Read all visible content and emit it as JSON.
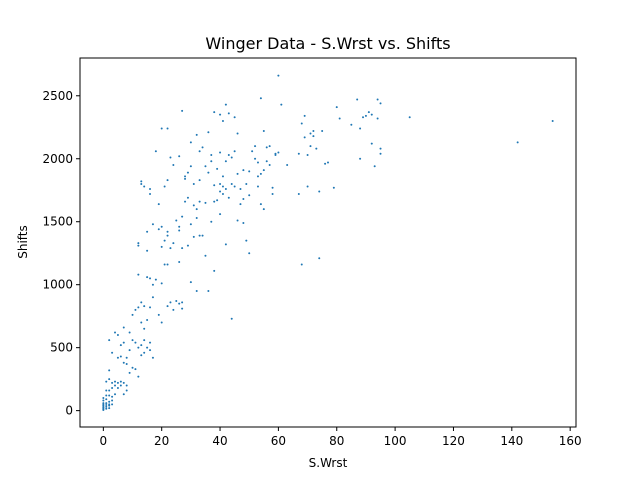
{
  "chart_data": {
    "type": "scatter",
    "title": "Winger Data - S.Wrst vs. Shifts",
    "xlabel": "S.Wrst",
    "ylabel": "Shifts",
    "xlim": [
      -8,
      162
    ],
    "ylim": [
      -130,
      2800
    ],
    "xticks": [
      0,
      20,
      40,
      60,
      80,
      100,
      120,
      140,
      160
    ],
    "yticks": [
      0,
      500,
      1000,
      1500,
      2000,
      2500
    ],
    "grid": false,
    "marker_color": "#1f77b4",
    "points": [
      [
        0,
        10
      ],
      [
        0,
        20
      ],
      [
        0,
        25
      ],
      [
        0,
        30
      ],
      [
        0,
        40
      ],
      [
        0,
        50
      ],
      [
        0,
        60
      ],
      [
        0,
        80
      ],
      [
        0,
        100
      ],
      [
        0,
        5
      ],
      [
        1,
        15
      ],
      [
        1,
        30
      ],
      [
        1,
        45
      ],
      [
        1,
        60
      ],
      [
        1,
        90
      ],
      [
        1,
        120
      ],
      [
        1,
        160
      ],
      [
        1,
        230
      ],
      [
        2,
        20
      ],
      [
        2,
        40
      ],
      [
        2,
        50
      ],
      [
        2,
        70
      ],
      [
        2,
        120
      ],
      [
        2,
        160
      ],
      [
        2,
        250
      ],
      [
        2,
        320
      ],
      [
        2,
        560
      ],
      [
        3,
        50
      ],
      [
        3,
        80
      ],
      [
        3,
        110
      ],
      [
        3,
        180
      ],
      [
        3,
        220
      ],
      [
        3,
        460
      ],
      [
        4,
        130
      ],
      [
        4,
        200
      ],
      [
        4,
        230
      ],
      [
        4,
        620
      ],
      [
        5,
        180
      ],
      [
        5,
        220
      ],
      [
        5,
        420
      ],
      [
        5,
        600
      ],
      [
        6,
        200
      ],
      [
        6,
        230
      ],
      [
        6,
        430
      ],
      [
        6,
        520
      ],
      [
        7,
        130
      ],
      [
        7,
        220
      ],
      [
        7,
        380
      ],
      [
        7,
        540
      ],
      [
        7,
        660
      ],
      [
        8,
        160
      ],
      [
        8,
        200
      ],
      [
        8,
        370
      ],
      [
        8,
        420
      ],
      [
        9,
        300
      ],
      [
        9,
        480
      ],
      [
        9,
        620
      ],
      [
        10,
        340
      ],
      [
        10,
        560
      ],
      [
        10,
        760
      ],
      [
        11,
        330
      ],
      [
        11,
        540
      ],
      [
        11,
        800
      ],
      [
        12,
        270
      ],
      [
        12,
        500
      ],
      [
        12,
        820
      ],
      [
        12,
        1080
      ],
      [
        12,
        1310
      ],
      [
        12,
        1330
      ],
      [
        13,
        440
      ],
      [
        13,
        520
      ],
      [
        13,
        700
      ],
      [
        13,
        860
      ],
      [
        13,
        1800
      ],
      [
        13,
        1820
      ],
      [
        14,
        460
      ],
      [
        14,
        560
      ],
      [
        14,
        650
      ],
      [
        14,
        830
      ],
      [
        14,
        1780
      ],
      [
        15,
        500
      ],
      [
        15,
        720
      ],
      [
        15,
        1060
      ],
      [
        15,
        1270
      ],
      [
        15,
        1420
      ],
      [
        16,
        480
      ],
      [
        16,
        540
      ],
      [
        16,
        820
      ],
      [
        16,
        1050
      ],
      [
        16,
        1720
      ],
      [
        16,
        1760
      ],
      [
        17,
        420
      ],
      [
        17,
        900
      ],
      [
        17,
        1000
      ],
      [
        17,
        1480
      ],
      [
        18,
        1040
      ],
      [
        18,
        2060
      ],
      [
        19,
        760
      ],
      [
        19,
        1440
      ],
      [
        19,
        1640
      ],
      [
        20,
        700
      ],
      [
        20,
        1010
      ],
      [
        20,
        1300
      ],
      [
        20,
        1460
      ],
      [
        20,
        2240
      ],
      [
        21,
        1160
      ],
      [
        21,
        1350
      ],
      [
        21,
        1780
      ],
      [
        22,
        830
      ],
      [
        22,
        1160
      ],
      [
        22,
        1390
      ],
      [
        22,
        1420
      ],
      [
        22,
        1830
      ],
      [
        22,
        2240
      ],
      [
        23,
        860
      ],
      [
        23,
        1290
      ],
      [
        23,
        2010
      ],
      [
        24,
        800
      ],
      [
        24,
        1330
      ],
      [
        24,
        1950
      ],
      [
        25,
        870
      ],
      [
        25,
        1510
      ],
      [
        26,
        850
      ],
      [
        26,
        1180
      ],
      [
        26,
        1430
      ],
      [
        26,
        1460
      ],
      [
        26,
        2020
      ],
      [
        27,
        810
      ],
      [
        27,
        860
      ],
      [
        27,
        1290
      ],
      [
        27,
        1540
      ],
      [
        27,
        2380
      ],
      [
        28,
        1660
      ],
      [
        28,
        1840
      ],
      [
        28,
        1860
      ],
      [
        29,
        1310
      ],
      [
        29,
        1690
      ],
      [
        29,
        1890
      ],
      [
        30,
        1020
      ],
      [
        30,
        1480
      ],
      [
        30,
        1940
      ],
      [
        30,
        2130
      ],
      [
        31,
        1380
      ],
      [
        31,
        1630
      ],
      [
        31,
        1800
      ],
      [
        32,
        950
      ],
      [
        32,
        1530
      ],
      [
        32,
        1600
      ],
      [
        32,
        2190
      ],
      [
        33,
        1390
      ],
      [
        33,
        1660
      ],
      [
        33,
        1830
      ],
      [
        33,
        2060
      ],
      [
        34,
        1390
      ],
      [
        34,
        2090
      ],
      [
        35,
        1230
      ],
      [
        35,
        1650
      ],
      [
        35,
        1940
      ],
      [
        36,
        950
      ],
      [
        36,
        1890
      ],
      [
        36,
        2210
      ],
      [
        37,
        1500
      ],
      [
        37,
        1980
      ],
      [
        37,
        2030
      ],
      [
        38,
        1110
      ],
      [
        38,
        1660
      ],
      [
        38,
        1790
      ],
      [
        38,
        2370
      ],
      [
        39,
        1670
      ],
      [
        39,
        1920
      ],
      [
        40,
        1560
      ],
      [
        40,
        1740
      ],
      [
        40,
        1800
      ],
      [
        40,
        2050
      ],
      [
        40,
        2350
      ],
      [
        41,
        1720
      ],
      [
        41,
        1780
      ],
      [
        41,
        1860
      ],
      [
        41,
        2300
      ],
      [
        42,
        1320
      ],
      [
        42,
        1760
      ],
      [
        42,
        1980
      ],
      [
        42,
        2430
      ],
      [
        43,
        1690
      ],
      [
        43,
        2030
      ],
      [
        43,
        2360
      ],
      [
        44,
        730
      ],
      [
        44,
        1800
      ],
      [
        44,
        2010
      ],
      [
        45,
        1780
      ],
      [
        45,
        2060
      ],
      [
        45,
        2330
      ],
      [
        46,
        1510
      ],
      [
        46,
        1880
      ],
      [
        46,
        2200
      ],
      [
        47,
        1640
      ],
      [
        47,
        1760
      ],
      [
        48,
        1490
      ],
      [
        48,
        1680
      ],
      [
        48,
        1910
      ],
      [
        49,
        1350
      ],
      [
        49,
        1800
      ],
      [
        50,
        1250
      ],
      [
        50,
        1710
      ],
      [
        50,
        1900
      ],
      [
        51,
        2060
      ],
      [
        52,
        2000
      ],
      [
        52,
        2100
      ],
      [
        53,
        1780
      ],
      [
        53,
        1860
      ],
      [
        53,
        1970
      ],
      [
        54,
        1640
      ],
      [
        54,
        1880
      ],
      [
        54,
        2480
      ],
      [
        55,
        1600
      ],
      [
        55,
        1910
      ],
      [
        55,
        2220
      ],
      [
        56,
        1980
      ],
      [
        56,
        2090
      ],
      [
        57,
        1950
      ],
      [
        57,
        2100
      ],
      [
        58,
        1720
      ],
      [
        58,
        1770
      ],
      [
        59,
        2030
      ],
      [
        59,
        2040
      ],
      [
        60,
        2660
      ],
      [
        60,
        2050
      ],
      [
        61,
        2430
      ],
      [
        63,
        1950
      ],
      [
        67,
        1720
      ],
      [
        67,
        2040
      ],
      [
        68,
        1160
      ],
      [
        68,
        2280
      ],
      [
        69,
        2170
      ],
      [
        69,
        2340
      ],
      [
        70,
        1780
      ],
      [
        70,
        2030
      ],
      [
        71,
        2200
      ],
      [
        71,
        2100
      ],
      [
        72,
        2220
      ],
      [
        72,
        2180
      ],
      [
        73,
        2080
      ],
      [
        74,
        1210
      ],
      [
        74,
        1740
      ],
      [
        75,
        2220
      ],
      [
        76,
        1960
      ],
      [
        77,
        1970
      ],
      [
        79,
        1770
      ],
      [
        80,
        2410
      ],
      [
        81,
        2320
      ],
      [
        85,
        2270
      ],
      [
        87,
        2470
      ],
      [
        88,
        2240
      ],
      [
        88,
        2000
      ],
      [
        89,
        2330
      ],
      [
        90,
        2340
      ],
      [
        91,
        2370
      ],
      [
        92,
        2120
      ],
      [
        92,
        2350
      ],
      [
        93,
        1940
      ],
      [
        94,
        2470
      ],
      [
        94,
        2320
      ],
      [
        95,
        2040
      ],
      [
        95,
        2080
      ],
      [
        95,
        2440
      ],
      [
        105,
        2330
      ],
      [
        142,
        2130
      ],
      [
        154,
        2300
      ]
    ]
  }
}
